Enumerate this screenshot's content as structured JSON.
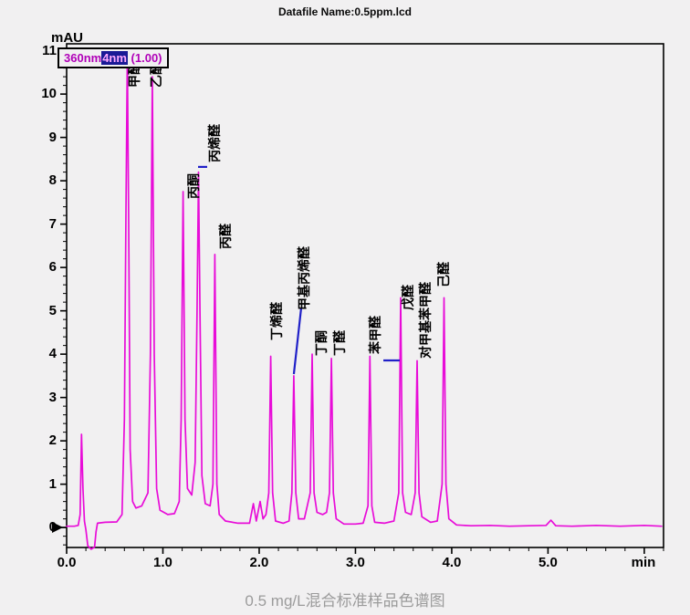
{
  "header": {
    "datafile_label": "Datafile Name:0.5ppm.lcd"
  },
  "legend": {
    "pre": "360nm",
    "highlight": "4nm",
    "post": " (1.00)"
  },
  "axes": {
    "y_unit": "mAU",
    "x_unit": "min",
    "y_tick_labels": [
      "0",
      "1",
      "2",
      "3",
      "4",
      "5",
      "6",
      "7",
      "8",
      "9",
      "10",
      "11"
    ],
    "x_tick_labels": [
      "0.0",
      "1.0",
      "2.0",
      "3.0",
      "4.0",
      "5.0"
    ]
  },
  "caption": "0.5 mg/L混合标准样品色谱图",
  "chart_data": {
    "type": "line",
    "title": "0.5 mg/L混合标准样品色谱图",
    "xlabel": "min",
    "ylabel": "mAU",
    "xlim": [
      0,
      6.2
    ],
    "ylim": [
      -0.46,
      11.16
    ],
    "x_major_ticks": [
      0,
      1,
      2,
      3,
      4,
      5,
      6
    ],
    "y_major_ticks": [
      0,
      1,
      2,
      3,
      4,
      5,
      6,
      7,
      8,
      9,
      10,
      11
    ],
    "minor_tick_step": 0.2,
    "grid": "off",
    "trace_color": "#e80cd8",
    "leader_color": "#2020c8",
    "detector_channel": "360nm4nm (1.00)",
    "peaks": [
      {
        "name": "甲醛",
        "rt_min": 0.63,
        "height_mAU": 10.9
      },
      {
        "name": "乙醛",
        "rt_min": 0.89,
        "height_mAU": 10.4
      },
      {
        "name": "丙酮",
        "rt_min": 1.21,
        "height_mAU": 7.75
      },
      {
        "name": "丙烯醛",
        "rt_min": 1.37,
        "height_mAU": 8.2
      },
      {
        "name": "丙醛",
        "rt_min": 1.54,
        "height_mAU": 6.3
      },
      {
        "name": "丁烯醛",
        "rt_min": 2.12,
        "height_mAU": 3.95
      },
      {
        "name": "甲基丙烯醛",
        "rt_min": 2.36,
        "height_mAU": 3.5
      },
      {
        "name": "丁酮",
        "rt_min": 2.55,
        "height_mAU": 4.0
      },
      {
        "name": "丁醛",
        "rt_min": 2.75,
        "height_mAU": 3.9
      },
      {
        "name": "苯甲醛",
        "rt_min": 3.15,
        "height_mAU": 3.95
      },
      {
        "name": "戊醛",
        "rt_min": 3.47,
        "height_mAU": 5.3
      },
      {
        "name": "对甲基苯甲醛",
        "rt_min": 3.64,
        "height_mAU": 3.85
      },
      {
        "name": "己醛",
        "rt_min": 3.92,
        "height_mAU": 5.3
      }
    ],
    "peak_labels": [
      {
        "text": "甲醛",
        "t": 0.7,
        "bottom": 10.15
      },
      {
        "text": "乙醛",
        "t": 0.93,
        "bottom": 10.15
      },
      {
        "text": "丙酮",
        "t": 1.32,
        "bottom": 7.58
      },
      {
        "text": "丙烯醛",
        "t": 1.54,
        "bottom": 8.42
      },
      {
        "text": "丙醛",
        "t": 1.65,
        "bottom": 6.42
      },
      {
        "text": "丁烯醛",
        "t": 2.18,
        "bottom": 4.32
      },
      {
        "text": "甲基丙烯醛",
        "t": 2.465,
        "bottom": 5.01
      },
      {
        "text": "丁酮",
        "t": 2.645,
        "bottom": 3.96
      },
      {
        "text": "丁醛",
        "t": 2.835,
        "bottom": 3.96
      },
      {
        "text": "苯甲醛",
        "t": 3.205,
        "bottom": 4.0
      },
      {
        "text": "戊醛",
        "t": 3.546,
        "bottom": 5.01
      },
      {
        "text": "对甲基苯甲醛",
        "t": 3.726,
        "bottom": 3.89
      },
      {
        "text": "己醛",
        "t": 3.915,
        "bottom": 5.54
      }
    ],
    "leader_lines": [
      {
        "x1": 1.365,
        "y1": 8.32,
        "x2": 1.46,
        "y2": 8.32
      },
      {
        "x1": 2.36,
        "y1": 3.54,
        "x2": 2.436,
        "y2": 5.06
      },
      {
        "x1": 3.29,
        "y1": 3.855,
        "x2": 3.46,
        "y2": 3.855
      }
    ],
    "trace": [
      [
        0.0,
        0.03
      ],
      [
        0.08,
        0.03
      ],
      [
        0.12,
        0.05
      ],
      [
        0.14,
        0.3
      ],
      [
        0.155,
        2.15
      ],
      [
        0.17,
        0.9
      ],
      [
        0.185,
        0.15
      ],
      [
        0.2,
        -0.05
      ],
      [
        0.22,
        -0.42
      ],
      [
        0.255,
        -0.5
      ],
      [
        0.29,
        -0.45
      ],
      [
        0.305,
        -0.1
      ],
      [
        0.32,
        0.1
      ],
      [
        0.4,
        0.12
      ],
      [
        0.52,
        0.13
      ],
      [
        0.575,
        0.3
      ],
      [
        0.6,
        2.5
      ],
      [
        0.615,
        7.0
      ],
      [
        0.63,
        10.9
      ],
      [
        0.645,
        7.0
      ],
      [
        0.66,
        1.8
      ],
      [
        0.685,
        0.6
      ],
      [
        0.72,
        0.45
      ],
      [
        0.78,
        0.5
      ],
      [
        0.845,
        0.8
      ],
      [
        0.87,
        4.0
      ],
      [
        0.89,
        10.4
      ],
      [
        0.91,
        4.0
      ],
      [
        0.935,
        0.9
      ],
      [
        0.97,
        0.4
      ],
      [
        1.05,
        0.3
      ],
      [
        1.12,
        0.32
      ],
      [
        1.17,
        0.6
      ],
      [
        1.19,
        2.5
      ],
      [
        1.21,
        7.75
      ],
      [
        1.23,
        2.5
      ],
      [
        1.255,
        0.9
      ],
      [
        1.3,
        0.75
      ],
      [
        1.335,
        1.5
      ],
      [
        1.355,
        5.0
      ],
      [
        1.37,
        8.2
      ],
      [
        1.385,
        5.0
      ],
      [
        1.405,
        1.2
      ],
      [
        1.44,
        0.55
      ],
      [
        1.49,
        0.5
      ],
      [
        1.52,
        1.0
      ],
      [
        1.54,
        6.3
      ],
      [
        1.56,
        1.0
      ],
      [
        1.585,
        0.3
      ],
      [
        1.65,
        0.15
      ],
      [
        1.78,
        0.1
      ],
      [
        1.9,
        0.1
      ],
      [
        1.94,
        0.55
      ],
      [
        1.97,
        0.15
      ],
      [
        2.01,
        0.6
      ],
      [
        2.04,
        0.2
      ],
      [
        2.07,
        0.3
      ],
      [
        2.1,
        0.8
      ],
      [
        2.12,
        3.95
      ],
      [
        2.14,
        0.8
      ],
      [
        2.17,
        0.15
      ],
      [
        2.25,
        0.1
      ],
      [
        2.31,
        0.15
      ],
      [
        2.34,
        0.8
      ],
      [
        2.36,
        3.5
      ],
      [
        2.38,
        0.8
      ],
      [
        2.41,
        0.2
      ],
      [
        2.47,
        0.2
      ],
      [
        2.53,
        0.8
      ],
      [
        2.55,
        4.0
      ],
      [
        2.57,
        0.8
      ],
      [
        2.6,
        0.35
      ],
      [
        2.66,
        0.3
      ],
      [
        2.7,
        0.35
      ],
      [
        2.73,
        0.8
      ],
      [
        2.75,
        3.9
      ],
      [
        2.77,
        0.8
      ],
      [
        2.8,
        0.2
      ],
      [
        2.88,
        0.08
      ],
      [
        3.0,
        0.08
      ],
      [
        3.08,
        0.1
      ],
      [
        3.13,
        0.5
      ],
      [
        3.15,
        3.95
      ],
      [
        3.17,
        0.5
      ],
      [
        3.2,
        0.12
      ],
      [
        3.3,
        0.1
      ],
      [
        3.4,
        0.15
      ],
      [
        3.45,
        0.8
      ],
      [
        3.47,
        5.3
      ],
      [
        3.49,
        0.8
      ],
      [
        3.52,
        0.35
      ],
      [
        3.58,
        0.3
      ],
      [
        3.62,
        0.8
      ],
      [
        3.64,
        3.85
      ],
      [
        3.66,
        0.8
      ],
      [
        3.69,
        0.25
      ],
      [
        3.78,
        0.12
      ],
      [
        3.85,
        0.15
      ],
      [
        3.9,
        1.0
      ],
      [
        3.92,
        5.3
      ],
      [
        3.94,
        1.0
      ],
      [
        3.97,
        0.2
      ],
      [
        4.05,
        0.06
      ],
      [
        4.2,
        0.04
      ],
      [
        4.4,
        0.05
      ],
      [
        4.6,
        0.03
      ],
      [
        4.8,
        0.04
      ],
      [
        4.98,
        0.05
      ],
      [
        5.03,
        0.17
      ],
      [
        5.08,
        0.04
      ],
      [
        5.25,
        0.03
      ],
      [
        5.5,
        0.05
      ],
      [
        5.75,
        0.03
      ],
      [
        6.0,
        0.05
      ],
      [
        6.18,
        0.03
      ]
    ]
  }
}
